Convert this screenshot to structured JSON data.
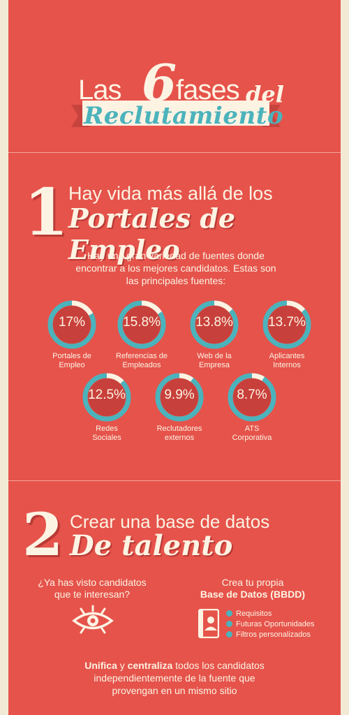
{
  "header": {
    "las": "Las",
    "six": "6",
    "fases": "fases",
    "del": "del",
    "reclutamiento": "Reclutamiento"
  },
  "section1": {
    "number": "1",
    "title_line1": "Hay vida más allá de los",
    "title_line2": "Portales de Empleo",
    "intro_lines": [
      "Hay una gran variedad de fuentes donde",
      "encontrar a los mejores candidatos. Estas son",
      "las principales fuentes:"
    ],
    "stats": [
      {
        "value": "17%",
        "fraction": 0.17,
        "label1": "Portales de",
        "label2": "Empleo"
      },
      {
        "value": "15.8%",
        "fraction": 0.158,
        "label1": "Referencias de",
        "label2": "Empleados"
      },
      {
        "value": "13.8%",
        "fraction": 0.138,
        "label1": "Web de la",
        "label2": "Empresa"
      },
      {
        "value": "13.7%",
        "fraction": 0.137,
        "label1": "Aplicantes",
        "label2": "Internos"
      },
      {
        "value": "12.5%",
        "fraction": 0.125,
        "label1": "Redes",
        "label2": "Sociales"
      },
      {
        "value": "9.9%",
        "fraction": 0.099,
        "label1": "Reclutadores",
        "label2": "externos"
      },
      {
        "value": "8.7%",
        "fraction": 0.087,
        "label1": "ATS",
        "label2": "Corporativa"
      }
    ]
  },
  "section2": {
    "number": "2",
    "title_line1": "Crear una base de datos",
    "title_line2": "De talento",
    "question_lines": [
      "¿Ya has visto candidatos",
      "que te interesan?"
    ],
    "crea_line": "Crea tu propia",
    "crea_bold": "Base de Datos (BBDD)",
    "features": [
      "Requisitos",
      "Futuras Oportunidades",
      "Filtros personalizados"
    ],
    "bottom": {
      "unifica": "Unifica",
      "y": " y ",
      "centraliza": "centraliza",
      "rest1": " todos los candidatos",
      "line2": "independientemente de la fuente que",
      "line3": "provengan en un mismo sitio"
    }
  },
  "colors": {
    "background_red": "#e5534b",
    "accent_teal": "#4bb3bc",
    "cream": "#fdf3e3"
  },
  "icons": [
    "eye-icon",
    "address-book-icon"
  ]
}
